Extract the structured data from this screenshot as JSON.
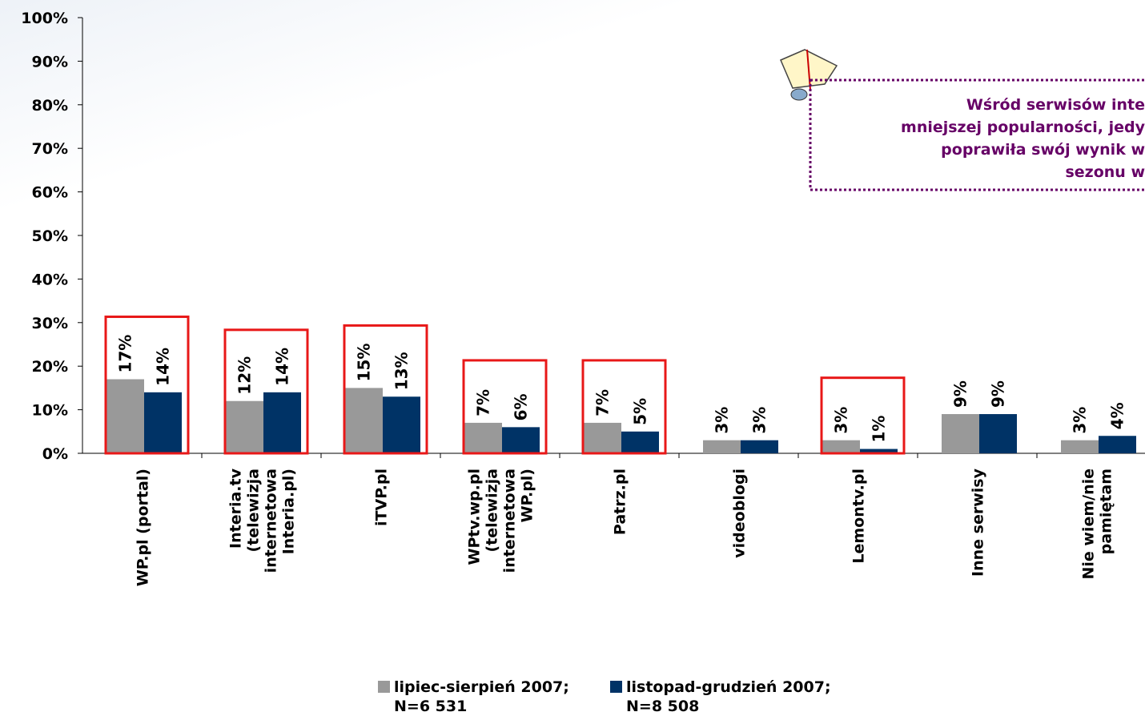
{
  "chart_data": {
    "type": "bar",
    "categories": [
      [
        "WP.pl (portal)"
      ],
      [
        "Interia.tv",
        "(telewizja",
        "internetowa",
        "Interia.pl)"
      ],
      [
        "iTVP.pl"
      ],
      [
        "WPtv.wp.pl",
        "(telewizja",
        "internetowa",
        "WP.pl)"
      ],
      [
        "Patrz.pl"
      ],
      [
        "videoblogi"
      ],
      [
        "Lemontv.pl"
      ],
      [
        "Inne serwisy"
      ],
      [
        "Nie wiem/nie",
        "pamiętam"
      ]
    ],
    "series": [
      {
        "name": "lipiec-sierpień 2007;\nN=6 531",
        "color": "#999999",
        "values": [
          17,
          12,
          15,
          7,
          7,
          3,
          3,
          9,
          3
        ],
        "value_labels": [
          "17%",
          "12%",
          "15%",
          "7%",
          "7%",
          "3%",
          "3%",
          "9%",
          "3%"
        ]
      },
      {
        "name": "listopad-grudzień 2007;\nN=8 508",
        "color": "#003366",
        "values": [
          14,
          14,
          13,
          6,
          5,
          3,
          1,
          9,
          4
        ],
        "value_labels": [
          "14%",
          "14%",
          "13%",
          "6%",
          "5%",
          "3%",
          "1%",
          "9%",
          "4%"
        ]
      }
    ],
    "ylim": [
      0,
      100
    ],
    "yticks": [
      {
        "value": 0,
        "label": "0%"
      },
      {
        "value": 10,
        "label": "10%"
      },
      {
        "value": 20,
        "label": "20%"
      },
      {
        "value": 30,
        "label": "30%"
      },
      {
        "value": 40,
        "label": "40%"
      },
      {
        "value": 50,
        "label": "50%"
      },
      {
        "value": 60,
        "label": "60%"
      },
      {
        "value": 70,
        "label": "70%"
      },
      {
        "value": 80,
        "label": "80%"
      },
      {
        "value": 90,
        "label": "90%"
      },
      {
        "value": 100,
        "label": "100%"
      }
    ],
    "highlighted_categories": [
      0,
      1,
      2,
      3,
      4,
      6
    ],
    "highlight_color": "#e81818",
    "annotation": [
      "Wśród serwisów inte",
      "mniejszej popularności, jedy",
      "poprawiła swój wynik w",
      "sezonu w"
    ],
    "annotation_color": "#660066"
  }
}
